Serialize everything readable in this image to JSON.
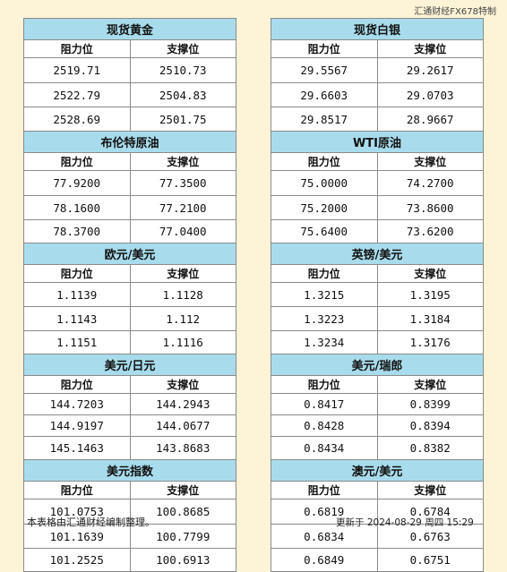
{
  "watermark": "汇通财经FX678特制",
  "headers": {
    "resistance": "阻力位",
    "support": "支撑位"
  },
  "left": [
    {
      "title": "现货黄金",
      "rows": [
        [
          "2519.71",
          "2510.73"
        ],
        [
          "2522.79",
          "2504.83"
        ],
        [
          "2528.69",
          "2501.75"
        ]
      ]
    },
    {
      "title": "布伦特原油",
      "rows": [
        [
          "77.9200",
          "77.3500"
        ],
        [
          "78.1600",
          "77.2100"
        ],
        [
          "78.3700",
          "77.0400"
        ]
      ]
    },
    {
      "title": "欧元/美元",
      "rows": [
        [
          "1.1139",
          "1.1128"
        ],
        [
          "1.1143",
          "1.112"
        ],
        [
          "1.1151",
          "1.1116"
        ]
      ]
    },
    {
      "title": "美元/日元",
      "rows": [
        [
          "144.7203",
          "144.2943"
        ],
        [
          "144.9197",
          "144.0677"
        ],
        [
          "145.1463",
          "143.8683"
        ]
      ]
    },
    {
      "title": "美元指数",
      "rows": [
        [
          "101.0753",
          "100.8685"
        ],
        [
          "101.1639",
          "100.7799"
        ],
        [
          "101.2525",
          "100.6913"
        ]
      ]
    }
  ],
  "right": [
    {
      "title": "现货白银",
      "rows": [
        [
          "29.5567",
          "29.2617"
        ],
        [
          "29.6603",
          "29.0703"
        ],
        [
          "29.8517",
          "28.9667"
        ]
      ]
    },
    {
      "title": "WTI原油",
      "rows": [
        [
          "75.0000",
          "74.2700"
        ],
        [
          "75.2000",
          "73.8600"
        ],
        [
          "75.6400",
          "73.6200"
        ]
      ]
    },
    {
      "title": "英镑/美元",
      "rows": [
        [
          "1.3215",
          "1.3195"
        ],
        [
          "1.3223",
          "1.3184"
        ],
        [
          "1.3234",
          "1.3176"
        ]
      ]
    },
    {
      "title": "美元/瑞郎",
      "rows": [
        [
          "0.8417",
          "0.8399"
        ],
        [
          "0.8428",
          "0.8394"
        ],
        [
          "0.8434",
          "0.8382"
        ]
      ]
    },
    {
      "title": "澳元/美元",
      "rows": [
        [
          "0.6819",
          "0.6784"
        ],
        [
          "0.6834",
          "0.6763"
        ],
        [
          "0.6849",
          "0.6751"
        ]
      ]
    }
  ],
  "footer": {
    "note": "本表格由汇通财经编制整理。",
    "updated": "更新于 2024-08-29 周四 15:29"
  }
}
